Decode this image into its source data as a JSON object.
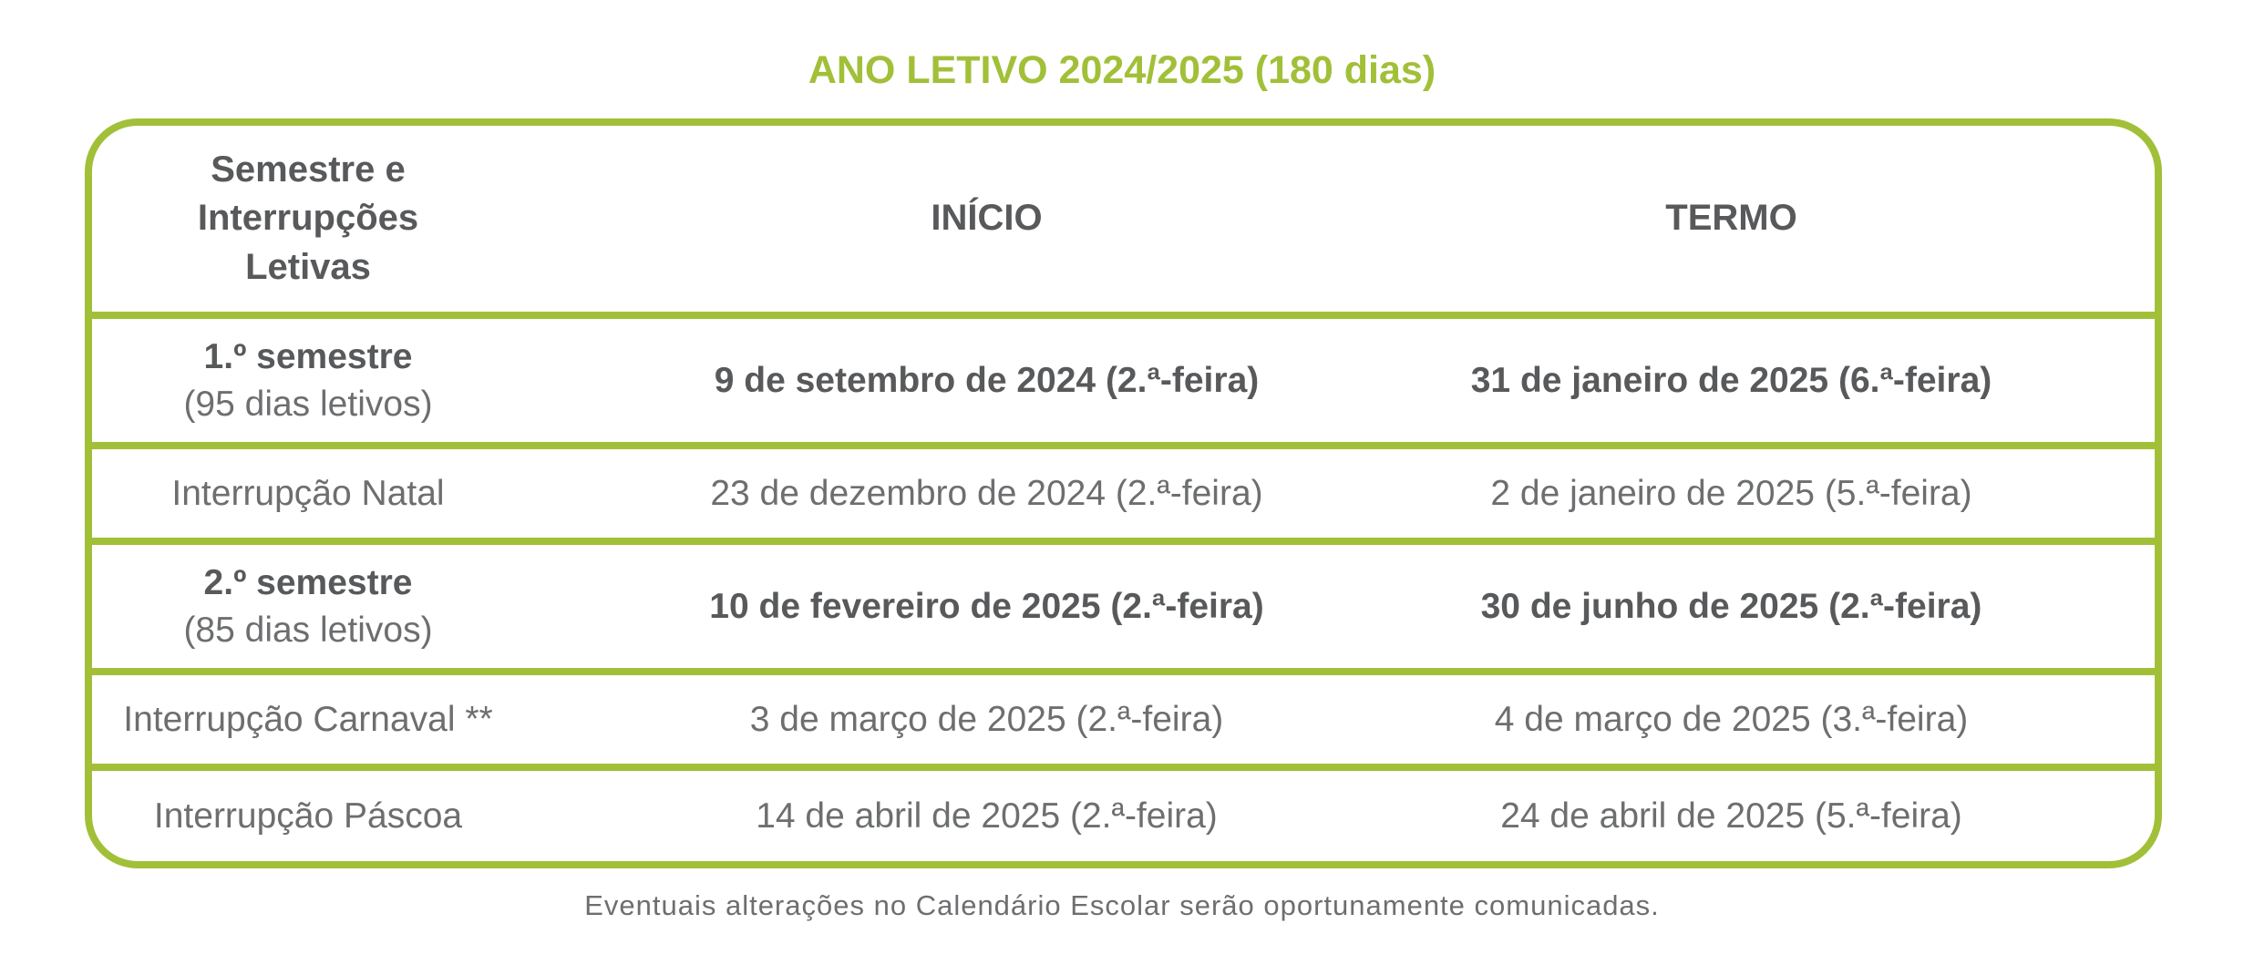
{
  "title": "ANO LETIVO 2024/2025 (180 dias)",
  "colors": {
    "accent_green": "#a1c038",
    "text_dark_bold": "#58595b",
    "text_gray": "#6d6e70"
  },
  "table": {
    "headers": {
      "col1": "Semestre e\nInterrupções\nLetivas",
      "col2": "INÍCIO",
      "col3": "TERMO"
    },
    "rows": [
      {
        "name": "1.º semestre",
        "detail": "(95 dias letivos)",
        "inicio": "9 de setembro de 2024 (2.ª-feira)",
        "termo": "31 de janeiro de 2025 (6.ª-feira)",
        "emphasis": "bold"
      },
      {
        "name": "Interrupção Natal",
        "detail": "",
        "inicio": "23 de dezembro de 2024 (2.ª-feira)",
        "termo": "2 de janeiro de 2025 (5.ª-feira)",
        "emphasis": "regular"
      },
      {
        "name": "2.º semestre",
        "detail": "(85 dias letivos)",
        "inicio": "10 de fevereiro de 2025 (2.ª-feira)",
        "termo": "30 de junho de 2025 (2.ª-feira)",
        "emphasis": "bold"
      },
      {
        "name": "Interrupção Carnaval **",
        "detail": "",
        "inicio": "3 de março de 2025 (2.ª-feira)",
        "termo": "4 de março de 2025 (3.ª-feira)",
        "emphasis": "regular"
      },
      {
        "name": "Interrupção Páscoa",
        "detail": "",
        "inicio": "14 de abril de 2025 (2.ª-feira)",
        "termo": "24 de abril de 2025 (5.ª-feira)",
        "emphasis": "regular"
      }
    ]
  },
  "footer": "Eventuais alterações no Calendário Escolar serão oportunamente comunicadas."
}
